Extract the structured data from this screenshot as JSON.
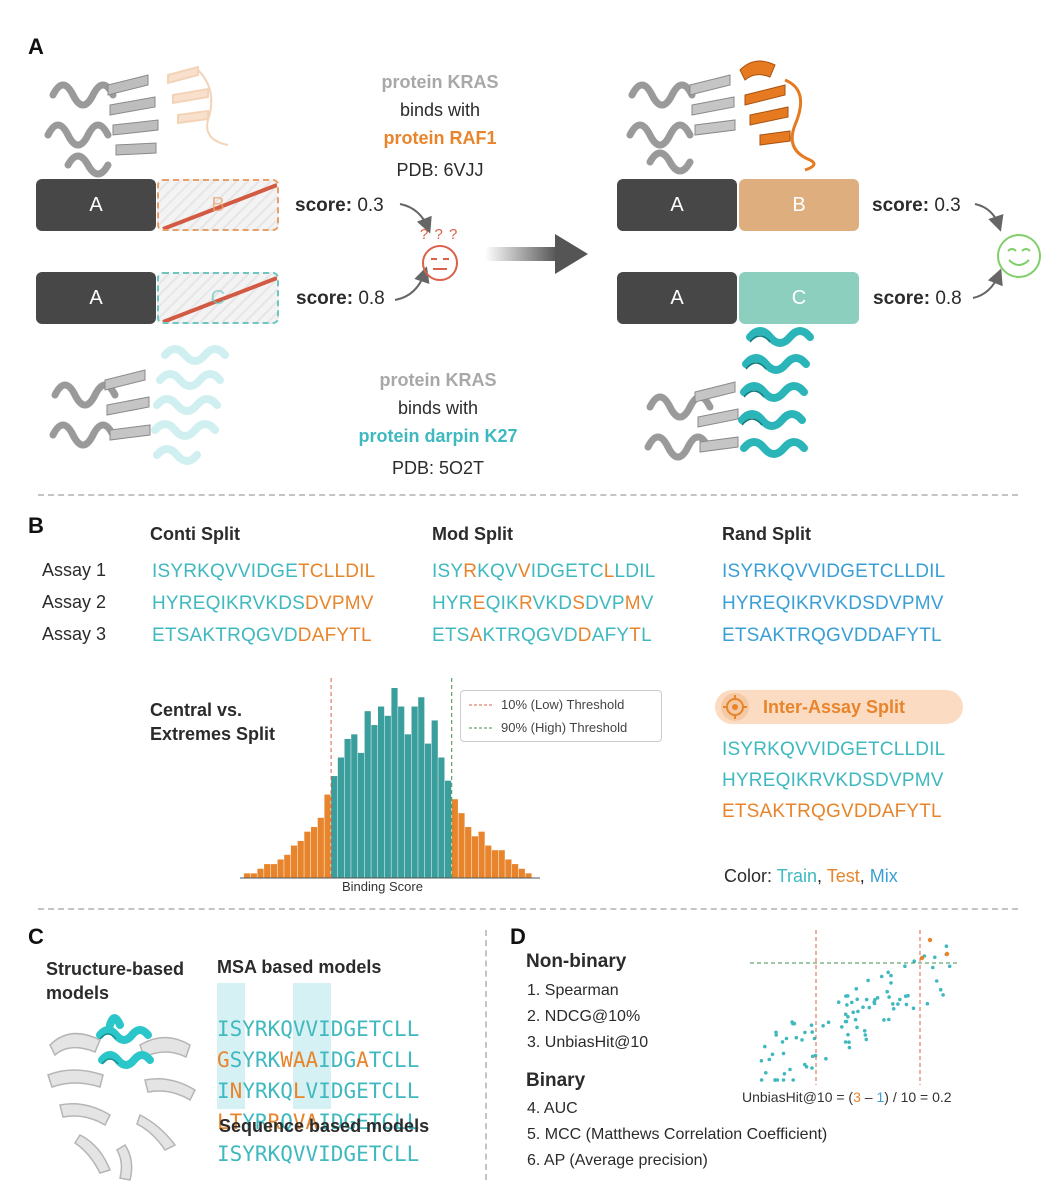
{
  "panelA": {
    "letter": "A",
    "top_text": {
      "line1": "protein KRAS",
      "line2": "binds with",
      "line3": "protein RAF1",
      "line4": "PDB: 6VJJ"
    },
    "bottom_text": {
      "line1": "protein KRAS",
      "line2": "binds with",
      "line3": "protein darpin K27",
      "line4": "PDB: 5O2T"
    },
    "left_boxes": {
      "a1": "A",
      "b": "B",
      "a2": "A",
      "c": "C"
    },
    "right_boxes": {
      "a1": "A",
      "b": "B",
      "a2": "A",
      "c": "C"
    },
    "scores": {
      "label": "score:",
      "top": "0.3",
      "bottom": "0.8"
    },
    "question_marks": "? ? ?",
    "colors": {
      "gray": "#a8a8a8",
      "orange": "#e8852c",
      "teal": "#3fb9bf",
      "dark_box": "#474747",
      "b_box": "#deae7e",
      "c_box": "#8ccfbf",
      "confused": "#d9604a",
      "happy": "#7fd06a"
    }
  },
  "panelB": {
    "letter": "B",
    "splits": [
      {
        "title": "Conti Split"
      },
      {
        "title": "Mod Split"
      },
      {
        "title": "Rand Split"
      }
    ],
    "assays": [
      "Assay 1",
      "Assay 2",
      "Assay 3"
    ],
    "conti": [
      {
        "train": "ISYRKQVVIDGE",
        "test": "TCLLDIL"
      },
      {
        "train": "HYREQIKRVKDS",
        "test": "DVPMV"
      },
      {
        "train": "ETSAKTRQGVD",
        "test": "DAFYTL"
      }
    ],
    "rand": [
      "ISYRKQVVIDGETCLLDIL",
      "HYREQIKRVKDSDVPMV",
      "ETSAKTRQGVDDAFYTL"
    ],
    "central_title_1": "Central vs.",
    "central_title_2": "Extremes Split",
    "hist_legend": {
      "low": "10% (Low) Threshold",
      "high": "90% (High) Threshold"
    },
    "hist_xlabel": "Binding Score",
    "inter_title": "Inter-Assay Split",
    "inter_seqs": [
      "ISYRKQVVIDGETCLLDIL",
      "HYREQIKRVKDSDVPMV",
      "ETSAKTRQGVDDAFYTL"
    ],
    "color_legend": {
      "label": "Color:",
      "train": "Train",
      "test": "Test",
      "mix": "Mix",
      "sep": ","
    }
  },
  "chart_data": {
    "type": "bar",
    "xlabel": "Binding Score",
    "values": [
      1,
      1,
      2,
      3,
      3,
      4,
      5,
      7,
      8,
      10,
      11,
      13,
      18,
      22,
      26,
      30,
      31,
      27,
      36,
      33,
      37,
      35,
      41,
      37,
      31,
      37,
      39,
      29,
      34,
      26,
      21,
      17,
      14,
      11,
      9,
      10,
      7,
      6,
      6,
      4,
      3,
      2,
      1
    ],
    "segments": [
      "test",
      "train",
      "test"
    ],
    "series": [
      {
        "name": "10% (Low) Threshold"
      },
      {
        "name": "90% (High) Threshold"
      }
    ]
  },
  "panelC": {
    "letter": "C",
    "structure_title_1": "Structure-based",
    "structure_title_2": "models",
    "msa_title": "MSA based models",
    "seq_title": "Sequence based models",
    "seq_model": "ISYRKQVVIDGETCLL"
  },
  "panelD": {
    "letter": "D",
    "nonbinary_title": "Non-binary",
    "nonbinary": [
      "1.  Spearman",
      "2.  NDCG@10%",
      "3.  UnbiasHit@10"
    ],
    "binary_title": "Binary",
    "binary": [
      "4.  AUC",
      "5.  MCC (Matthews Correlation Coefficient)",
      "6.  AP (Average precision)"
    ],
    "formula": {
      "prefix": "UnbiasHit@10 = (",
      "a": "3",
      "mid": " – ",
      "b": "1",
      "suffix": ") / 10 = 0.2"
    }
  }
}
